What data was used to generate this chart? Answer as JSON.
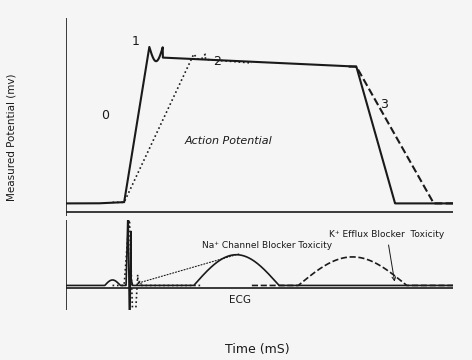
{
  "figure_bg": "#f5f5f5",
  "axes_bg": "#ffffff",
  "xlabel": "Time (mS)",
  "ylabel": "Measured Potential (mv)",
  "label_0": "0",
  "label_1": "1",
  "label_2": "2",
  "label_3": "3",
  "annotation_ap": "Action Potential",
  "annotation_na": "Na⁺ Channel Blocker Toxicity",
  "annotation_k": "K⁺ Efflux Blocker  Toxicity",
  "annotation_ecg": "ECG",
  "line_color": "#1a1a1a",
  "dotted_color": "#1a1a1a",
  "dashed_color": "#1a1a1a"
}
